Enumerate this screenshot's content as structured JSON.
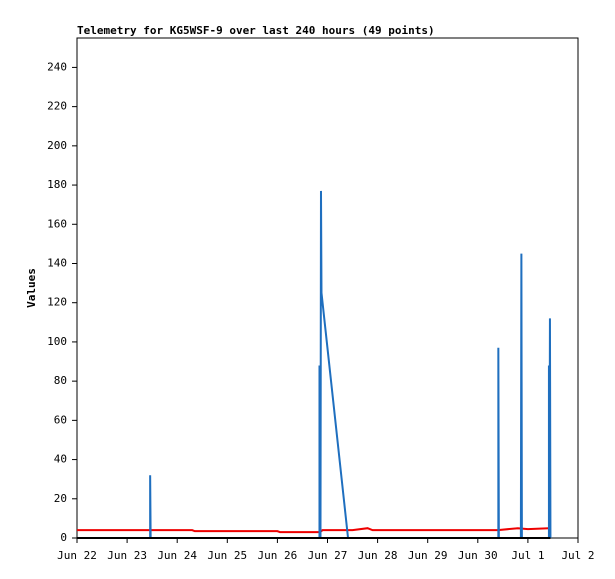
{
  "chart_data": {
    "type": "line",
    "title": "Telemetry for KG5WSF-9 over last 240 hours (49 points)",
    "y_label": "Values",
    "xlim": [
      0,
      10
    ],
    "xticks": [
      {
        "value": 0,
        "label": "Jun 22"
      },
      {
        "value": 1,
        "label": "Jun 23"
      },
      {
        "value": 2,
        "label": "Jun 24"
      },
      {
        "value": 3,
        "label": "Jun 25"
      },
      {
        "value": 4,
        "label": "Jun 26"
      },
      {
        "value": 5,
        "label": "Jun 27"
      },
      {
        "value": 6,
        "label": "Jun 28"
      },
      {
        "value": 7,
        "label": "Jun 29"
      },
      {
        "value": 8,
        "label": "Jun 30"
      },
      {
        "value": 9,
        "label": "Jul 1"
      },
      {
        "value": 10,
        "label": "Jul 2"
      }
    ],
    "ylim": [
      0,
      255
    ],
    "yticks": [
      0,
      20,
      40,
      60,
      80,
      100,
      120,
      140,
      160,
      180,
      200,
      220,
      240
    ],
    "series": [
      {
        "color": "#ee0000",
        "x": [
          0,
          2.3,
          2.35,
          4.0,
          4.05,
          4.85,
          4.9,
          5.5,
          5.8,
          5.9,
          8.4,
          8.8,
          9.0,
          9.42
        ],
        "values": [
          4,
          4,
          3.5,
          3.5,
          3,
          3,
          4,
          4,
          5,
          4,
          4,
          5,
          4.5,
          5
        ]
      },
      {
        "color": "#1f6fbf",
        "x": [
          1.46,
          1.46,
          1.47,
          4.84,
          4.84,
          4.86,
          4.87,
          4.88,
          5.41,
          8.41,
          8.41,
          8.42,
          8.86,
          8.87,
          8.88,
          9.42,
          9.42,
          9.43,
          9.44,
          9.45
        ],
        "values": [
          0,
          32,
          0,
          0,
          88,
          0,
          177,
          125,
          0,
          0,
          97,
          0,
          0,
          145,
          0,
          0,
          88,
          0,
          112,
          0
        ]
      },
      {
        "color": "#000000",
        "x": [
          0,
          9.45
        ],
        "values": [
          0,
          0
        ]
      }
    ]
  }
}
